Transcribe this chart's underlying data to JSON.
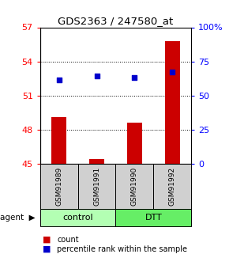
{
  "title": "GDS2363 / 247580_at",
  "samples": [
    "GSM91989",
    "GSM91991",
    "GSM91990",
    "GSM91992"
  ],
  "groups": [
    "control",
    "control",
    "DTT",
    "DTT"
  ],
  "bar_values": [
    49.1,
    45.4,
    48.6,
    55.8
  ],
  "dot_values": [
    52.4,
    52.7,
    52.6,
    53.1
  ],
  "ylim_left": [
    45,
    57
  ],
  "ylim_right": [
    0,
    100
  ],
  "yticks_left": [
    45,
    48,
    51,
    54,
    57
  ],
  "yticks_right": [
    0,
    25,
    50,
    75,
    100
  ],
  "ytick_labels_right": [
    "0",
    "25",
    "50",
    "75",
    "100%"
  ],
  "bar_color": "#cc0000",
  "dot_color": "#0000cc",
  "bar_base": 45,
  "group_colors": {
    "control": "#b3ffb3",
    "DTT": "#66ee66"
  },
  "legend_bar_label": "count",
  "legend_dot_label": "percentile rank within the sample",
  "sample_box_color": "#d0d0d0"
}
